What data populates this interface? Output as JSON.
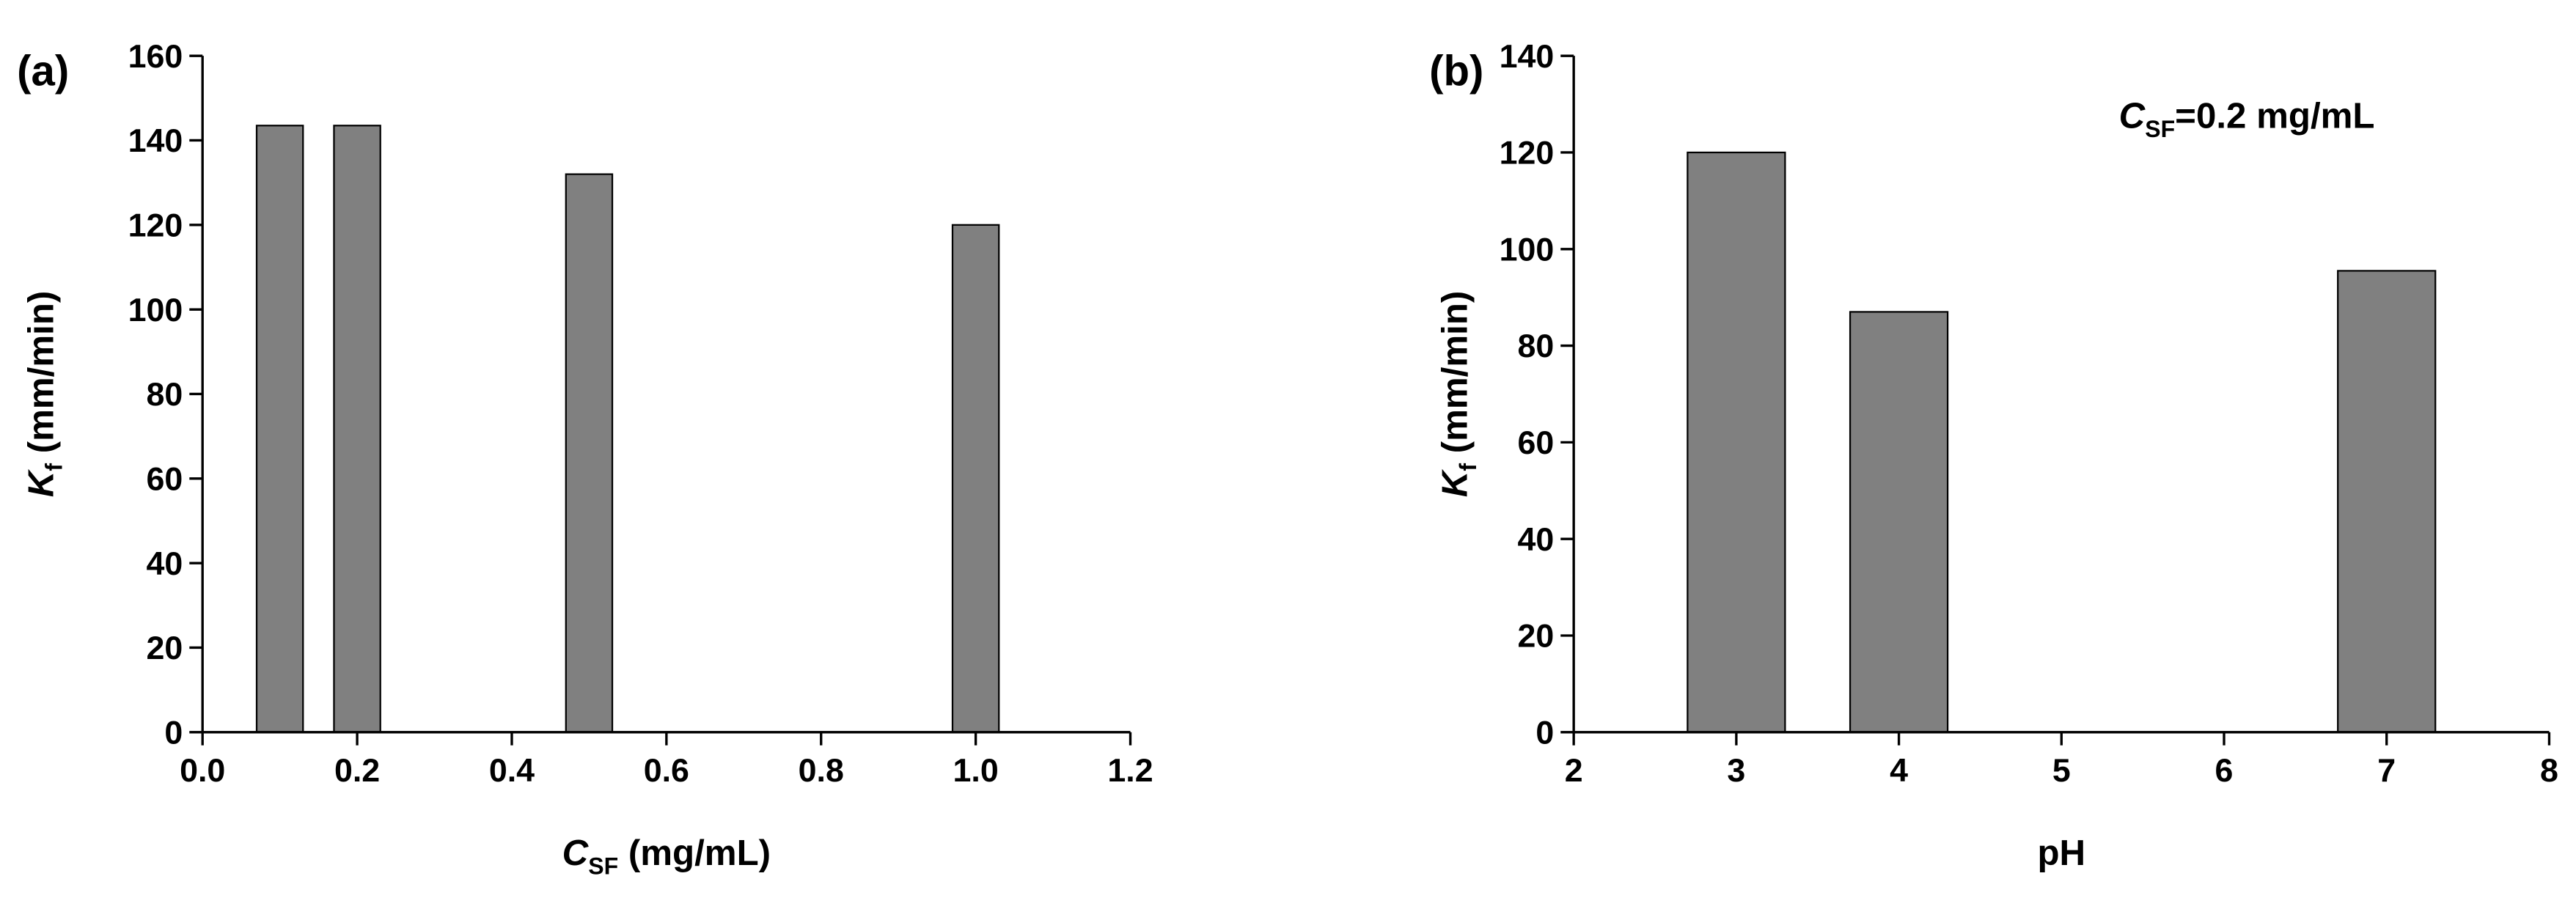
{
  "chart_data": [
    {
      "type": "bar",
      "panel_label": "(a)",
      "xlabel": [
        "C",
        "SF",
        " (mg/mL)"
      ],
      "ylabel": [
        "K",
        "f",
        " (mm/min)"
      ],
      "x": [
        0.1,
        0.2,
        0.5,
        1.0
      ],
      "values": [
        143.5,
        143.5,
        132,
        120
      ],
      "bar_width": 0.06,
      "color": "#808080",
      "xlim": [
        0,
        1.2
      ],
      "xticks": [
        {
          "value": 0,
          "label": "0.0"
        },
        0.2,
        0.4,
        0.6,
        0.8,
        {
          "value": 1,
          "label": "1.0"
        },
        1.2
      ],
      "ylim": [
        0,
        160
      ],
      "yticks": [
        0,
        20,
        40,
        60,
        80,
        100,
        120,
        140,
        160
      ]
    },
    {
      "type": "bar",
      "panel_label": "(b)",
      "xlabel": [
        "pH"
      ],
      "ylabel": [
        "K",
        "f",
        " (mm/min)"
      ],
      "annotation": [
        "C",
        "SF",
        "=0.2 mg/mL"
      ],
      "x": [
        3,
        4,
        7
      ],
      "values": [
        120,
        87,
        95.5
      ],
      "bar_width": 0.6,
      "color": "#808080",
      "xlim": [
        2,
        8
      ],
      "xticks": [
        2,
        3,
        4,
        5,
        6,
        7,
        8
      ],
      "ylim": [
        0,
        140
      ],
      "yticks": [
        0,
        20,
        40,
        60,
        80,
        100,
        120,
        140
      ]
    }
  ]
}
